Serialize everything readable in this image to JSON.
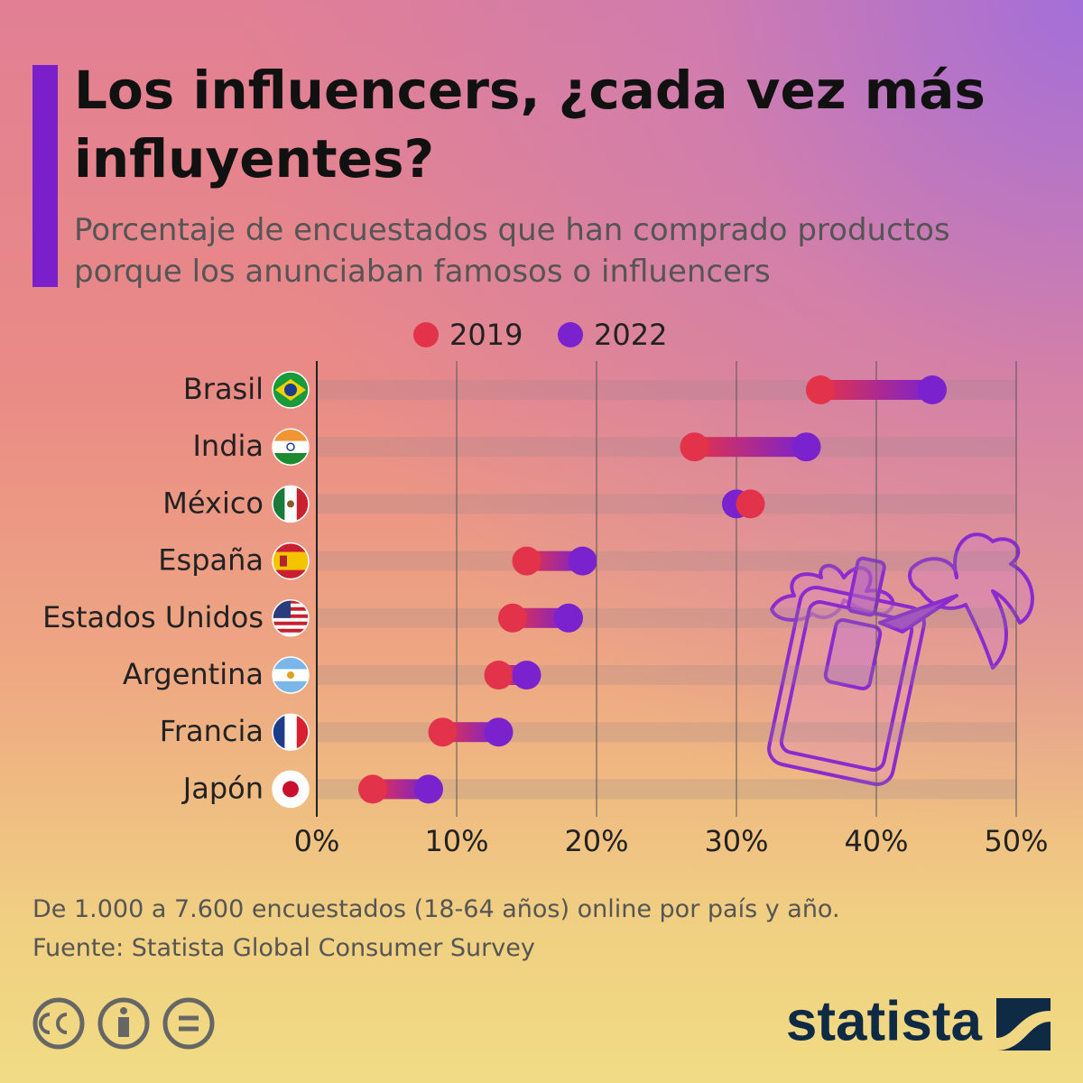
{
  "chart_data": {
    "type": "dumbbell",
    "title": "Los influencers, ¿cada vez más influyentes?",
    "subtitle": "Porcentaje de encuestados que han comprado productos porque los anunciaban famosos o influencers",
    "categories": [
      "Brasil",
      "India",
      "México",
      "España",
      "Estados Unidos",
      "Argentina",
      "Francia",
      "Japón"
    ],
    "series": [
      {
        "name": "2019",
        "color": "#e2334b",
        "values": [
          36,
          27,
          31,
          15,
          14,
          13,
          9,
          4
        ]
      },
      {
        "name": "2022",
        "color": "#7b22cf",
        "values": [
          44,
          35,
          30,
          19,
          18,
          15,
          13,
          8
        ]
      }
    ],
    "xlim": [
      0,
      50
    ],
    "xticks": [
      {
        "value": 0,
        "label": "0%"
      },
      {
        "value": 10,
        "label": "10%"
      },
      {
        "value": 20,
        "label": "20%"
      },
      {
        "value": 30,
        "label": "30%"
      },
      {
        "value": 40,
        "label": "40%"
      },
      {
        "value": 50,
        "label": "50%"
      }
    ],
    "grid": true,
    "note": "De 1.000 a 7.600 encuestados (18-64 años) online por país y año.",
    "source": "Fuente: Statista Global Consumer Survey"
  },
  "logo": "statista"
}
